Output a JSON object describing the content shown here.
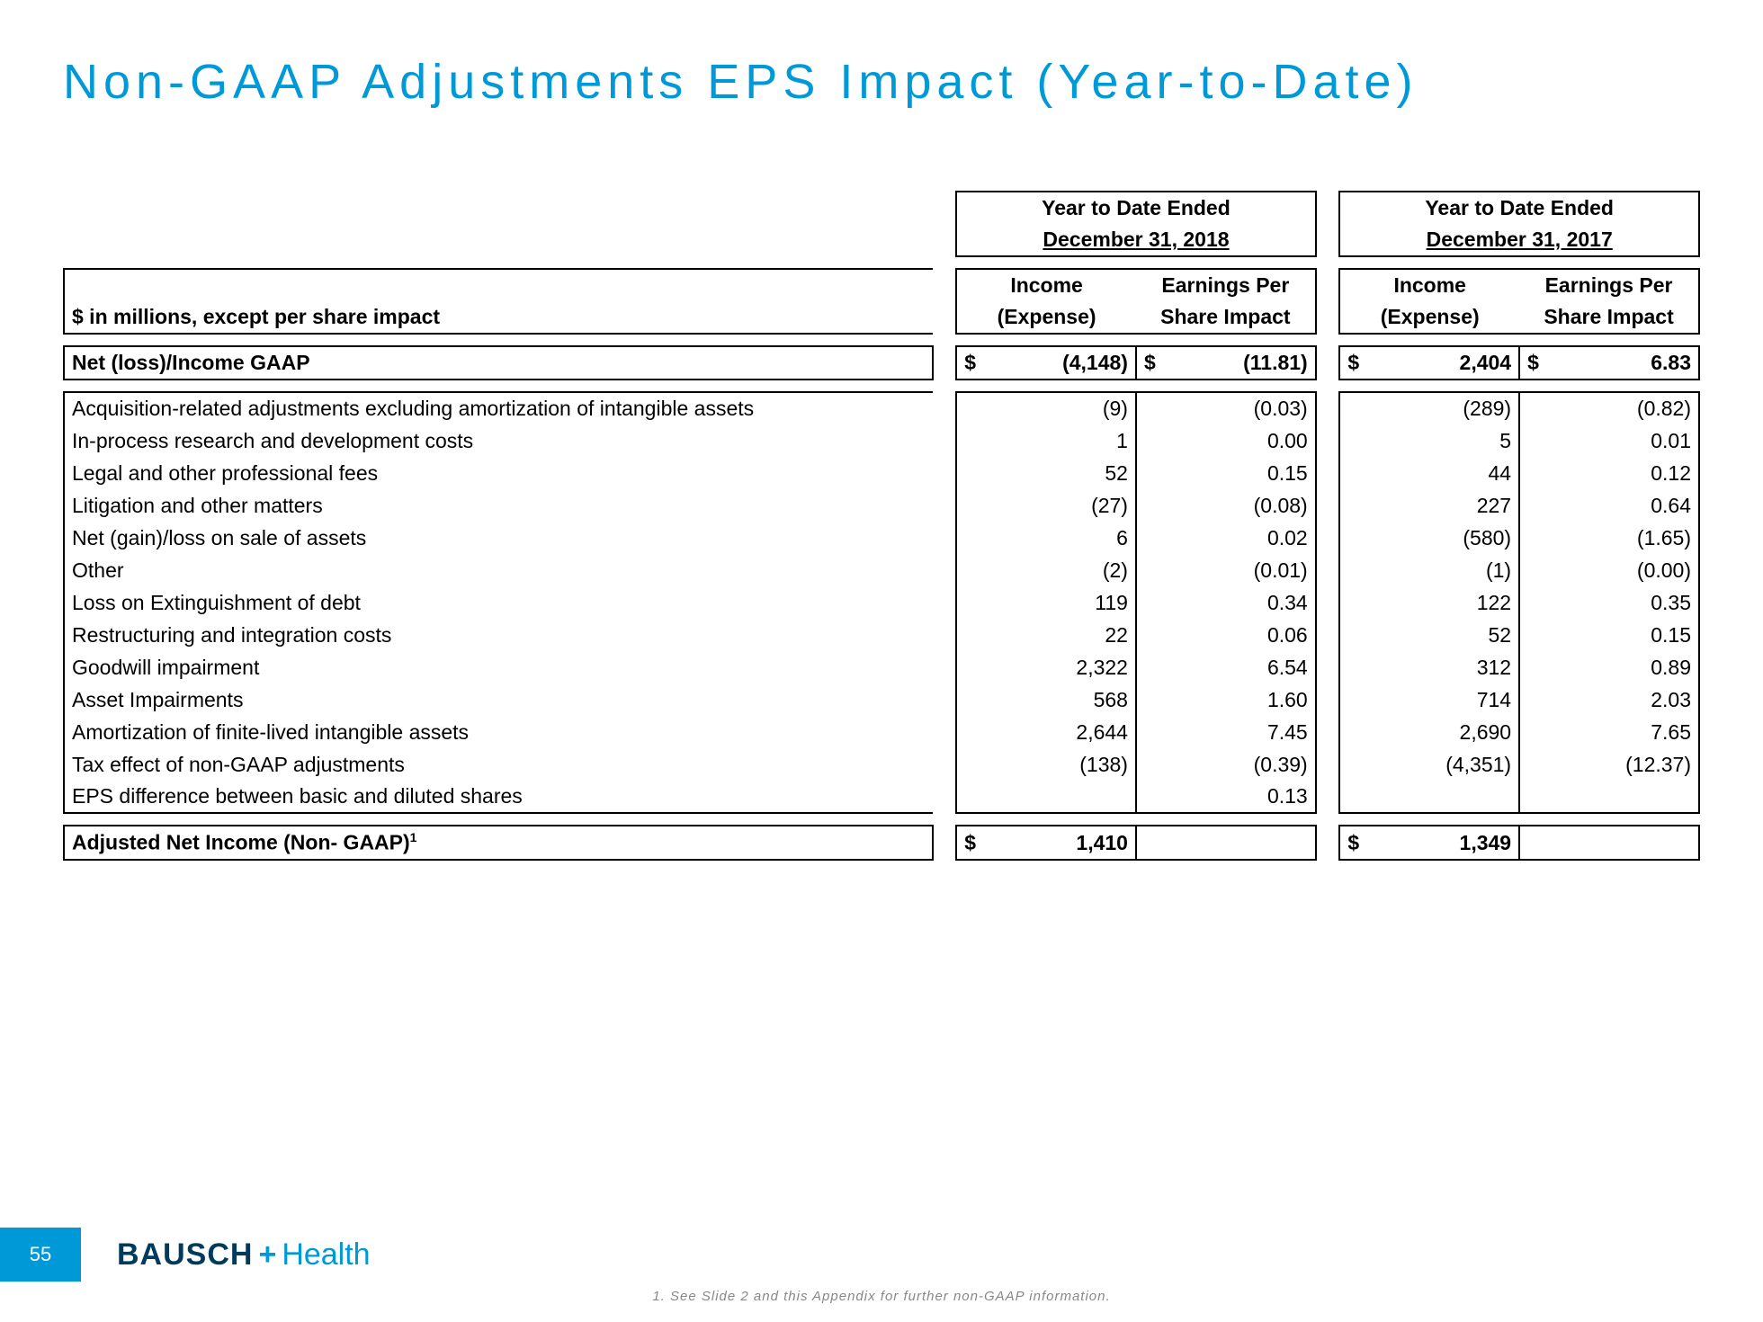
{
  "title": "Non-GAAP Adjustments EPS Impact (Year-to-Date)",
  "periods": {
    "p1_line1": "Year to Date Ended",
    "p1_line2": "December 31, 2018",
    "p2_line1": "Year to Date Ended",
    "p2_line2": "December 31, 2017"
  },
  "headers": {
    "row_label": "$ in millions, except per share impact",
    "income": "Income",
    "expense": "(Expense)",
    "eps1": "Earnings Per",
    "eps2": "Share Impact"
  },
  "currency": "$",
  "rows": {
    "net_loss": {
      "label": "Net (loss)/Income GAAP",
      "inc1": "(4,148)",
      "eps1": "(11.81)",
      "inc2": "2,404",
      "eps2": "6.83"
    },
    "acq": {
      "label": "Acquisition-related adjustments excluding amortization of intangible assets",
      "inc1": "(9)",
      "eps1": "(0.03)",
      "inc2": "(289)",
      "eps2": "(0.82)"
    },
    "iprd": {
      "label": "In-process research and development costs",
      "inc1": "1",
      "eps1": "0.00",
      "inc2": "5",
      "eps2": "0.01"
    },
    "legal": {
      "label": "Legal and other professional fees",
      "inc1": "52",
      "eps1": "0.15",
      "inc2": "44",
      "eps2": "0.12"
    },
    "litig": {
      "label": "Litigation and other matters",
      "inc1": "(27)",
      "eps1": "(0.08)",
      "inc2": "227",
      "eps2": "0.64"
    },
    "gainloss": {
      "label": "Net (gain)/loss on sale of assets",
      "inc1": "6",
      "eps1": "0.02",
      "inc2": "(580)",
      "eps2": "(1.65)"
    },
    "other": {
      "label": "Other",
      "inc1": "(2)",
      "eps1": "(0.01)",
      "inc2": "(1)",
      "eps2": "(0.00)"
    },
    "lossdebt": {
      "label": "Loss on Extinguishment of debt",
      "inc1": "119",
      "eps1": "0.34",
      "inc2": "122",
      "eps2": "0.35"
    },
    "restruct": {
      "label": "Restructuring and integration costs",
      "inc1": "22",
      "eps1": "0.06",
      "inc2": "52",
      "eps2": "0.15"
    },
    "goodwill": {
      "label": "Goodwill impairment",
      "inc1": "2,322",
      "eps1": "6.54",
      "inc2": "312",
      "eps2": "0.89"
    },
    "asset": {
      "label": "Asset Impairments",
      "inc1": "568",
      "eps1": "1.60",
      "inc2": "714",
      "eps2": "2.03"
    },
    "amort": {
      "label": "Amortization of finite-lived intangible assets",
      "inc1": "2,644",
      "eps1": "7.45",
      "inc2": "2,690",
      "eps2": "7.65"
    },
    "tax": {
      "label": "Tax effect of non-GAAP adjustments",
      "inc1": "(138)",
      "eps1": "(0.39)",
      "inc2": "(4,351)",
      "eps2": "(12.37)"
    },
    "epsdiff": {
      "label": "EPS difference between basic and diluted shares",
      "inc1": "",
      "eps1": "0.13",
      "inc2": "",
      "eps2": ""
    },
    "adjusted": {
      "label": "Adjusted Net Income (Non- GAAP)",
      "sup": "1",
      "inc1": "1,410",
      "eps1": "",
      "inc2": "1,349",
      "eps2": ""
    }
  },
  "footer": {
    "page": "55",
    "logo_bausch": "BAUSCH",
    "logo_plus": "+",
    "logo_health": "Health",
    "note": "1. See Slide 2 and this Appendix for further non-GAAP information."
  },
  "colors": {
    "accent": "#0099d8",
    "dark": "#003b5c",
    "text": "#000000",
    "footnote": "#888888",
    "bg": "#ffffff"
  }
}
